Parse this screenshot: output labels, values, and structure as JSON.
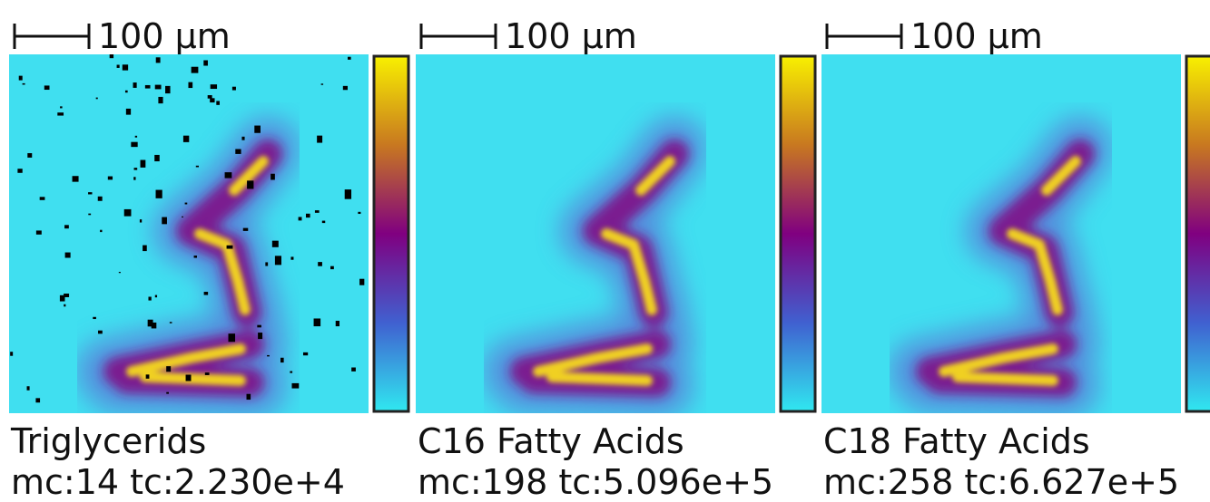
{
  "panels": [
    {
      "scale_label": "100 µm",
      "title": "Triglycerids",
      "stats": "mc:14 tc:2.230e+4"
    },
    {
      "scale_label": "100 µm",
      "title": "C16 Fatty Acids",
      "stats": "mc:198 tc:5.096e+5"
    },
    {
      "scale_label": "100 µm",
      "title": "C18 Fatty Acids",
      "stats": "mc:258 tc:6.627e+5"
    }
  ]
}
